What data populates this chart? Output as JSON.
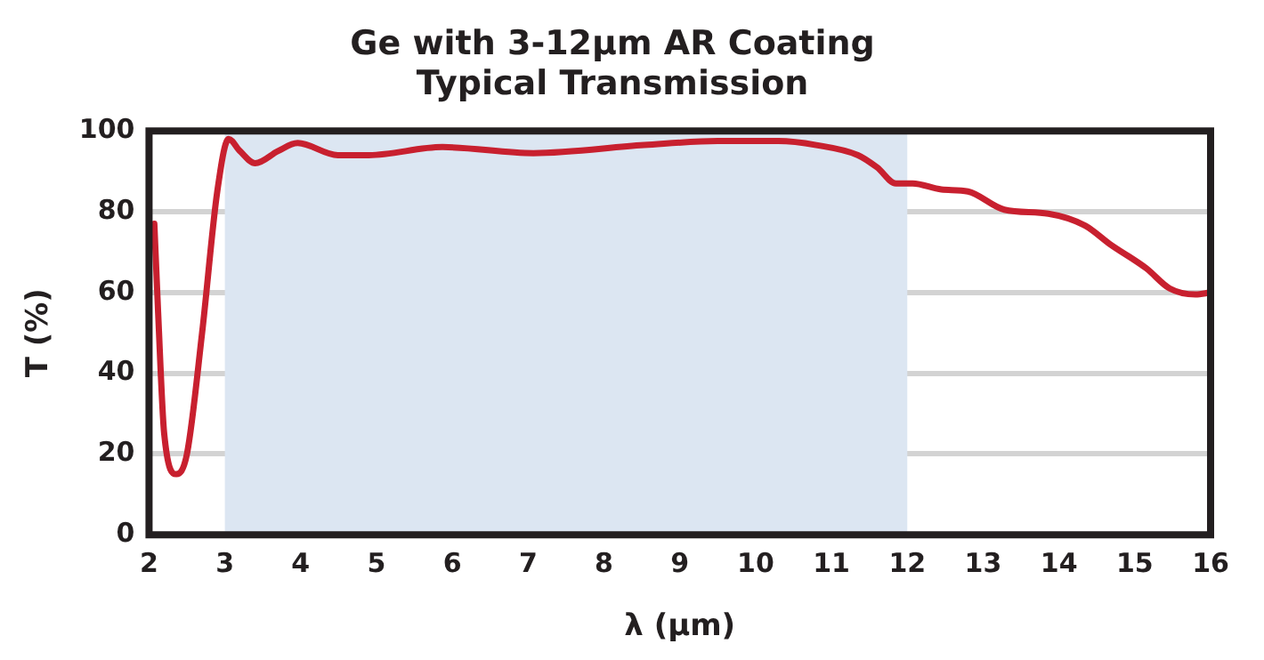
{
  "chart_data": {
    "type": "line",
    "title": "Ge with 3-12µm AR Coating\nTypical Transmission",
    "xlabel": "λ (µm)",
    "ylabel": "T (%)",
    "series": [
      {
        "color": "#c8202f",
        "x": [
          2.07,
          2.12,
          2.2,
          2.36,
          2.5,
          2.7,
          2.9,
          3.05,
          3.2,
          3.4,
          3.7,
          3.96,
          4.49,
          4.9,
          5.87,
          7.07,
          8.53,
          9.5,
          10.3,
          10.8,
          11.35,
          11.6,
          11.85,
          12.07,
          12.45,
          12.8,
          13.28,
          13.86,
          14.35,
          14.67,
          15.15,
          15.46,
          15.8,
          16
        ],
        "values": [
          77,
          55,
          25,
          15,
          20,
          50,
          85,
          98,
          95,
          92,
          95,
          97,
          94,
          94,
          96,
          94.5,
          96.5,
          97.5,
          97.5,
          96.5,
          94,
          91,
          87,
          87,
          85.5,
          85,
          80.5,
          79.5,
          76.5,
          72,
          66,
          61,
          59.5,
          60
        ]
      }
    ],
    "xlim": [
      2,
      16
    ],
    "xticks": [
      2,
      3,
      4,
      5,
      6,
      7,
      8,
      9,
      10,
      11,
      12,
      13,
      14,
      15,
      16
    ],
    "ylim": [
      0,
      100
    ],
    "yticks": [
      0,
      20,
      40,
      60,
      80,
      100
    ],
    "grid": "y",
    "legend": false,
    "marker": "none",
    "line_style": "solid",
    "bands": [
      {
        "axis": "x",
        "from": 3,
        "to": 12,
        "color": "#dce6f2"
      }
    ]
  }
}
